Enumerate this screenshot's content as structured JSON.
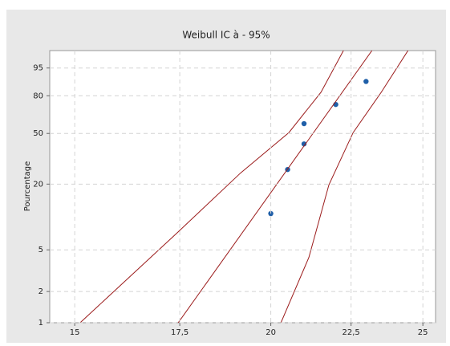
{
  "chart_data": {
    "type": "weibull-probability",
    "title": "Weibull IC à - 95%",
    "y_label": "Pourcentage",
    "xscale": "log",
    "yscale": "weibull",
    "grid": true,
    "xlim": [
      14.46,
      25.47
    ],
    "ylim": [
      1,
      98.8
    ],
    "xticks": [
      15,
      {
        "value": 17.5,
        "label": "17,5"
      },
      20,
      {
        "value": 22.5,
        "label": "22,5"
      },
      25
    ],
    "yticks": [
      1,
      2,
      5,
      20,
      50,
      80,
      95
    ],
    "series": [
      {
        "kind": "points",
        "color": "#1f5fa8",
        "x": [
          20,
          20.5,
          21,
          21,
          22,
          23
        ],
        "values": [
          10.9,
          26.6,
          42.2,
          57.8,
          73.4,
          89.1
        ]
      },
      {
        "kind": "line",
        "color": "#9b1b1b",
        "x": [
          17.46,
          23.2
        ],
        "values": [
          1,
          98.8
        ]
      },
      {
        "kind": "line",
        "color": "#9b1b1b",
        "x": [
          15.12,
          17.42,
          19.14,
          20.54,
          21.53,
          22.25
        ],
        "values": [
          1,
          7.16,
          25.0,
          50.7,
          82.5,
          98.8
        ]
      },
      {
        "kind": "line",
        "color": "#9b1b1b",
        "x": [
          20.3,
          21.15,
          21.78,
          22.57,
          23.52,
          24.46
        ],
        "values": [
          1,
          4.24,
          19.7,
          50.7,
          82.5,
          98.8
        ]
      }
    ]
  }
}
